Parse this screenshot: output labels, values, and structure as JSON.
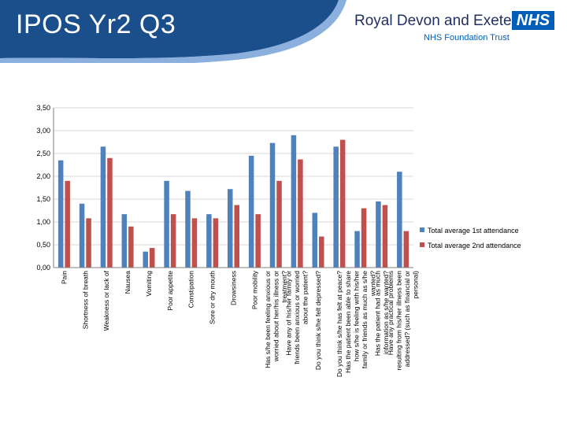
{
  "header": {
    "title": "IPOS Yr2 Q3",
    "org_name": "Royal Devon and Exeter",
    "nhs_badge": "NHS",
    "trust_name": "NHS Foundation Trust"
  },
  "colors": {
    "series1": "#4f81bd",
    "series2": "#c0504d",
    "header_dark": "#1b4f8c",
    "header_light": "#5a8fd0"
  },
  "chart_data": {
    "type": "bar",
    "title": "",
    "xlabel": "",
    "ylabel": "",
    "ylim": [
      0,
      3.5
    ],
    "yticks": [
      "0,00",
      "0,50",
      "1,00",
      "1,50",
      "2,00",
      "2,50",
      "3,00",
      "3,50"
    ],
    "legend_position": "right",
    "categories": [
      "Pain",
      "Shortness of breath",
      "Weakness or lack of",
      "Nausea",
      "Vomiting",
      "Poor appetite",
      "Constipation",
      "Sore or dry mouth",
      "Drowsiness",
      "Poor mobility",
      "Has s/he been feeling anxious or worried about her/his illness or treatment?",
      "Have any of his/her family or friends been anxious or worried about the patient?",
      "Do you think s/he felt depressed?",
      "Do you think s/he has felt at peace?",
      "Has the patient been able to share how s/he is feeling with his/her family or friends as much as s/he wanted?",
      "Has the patient had as much information as s/he wanted?",
      "Have any practical problems resulting from his/her illness been addressed? (such as financial or personal)"
    ],
    "series": [
      {
        "name": "Total average 1st attendance",
        "values": [
          2.35,
          1.4,
          2.65,
          1.17,
          0.35,
          1.9,
          1.68,
          1.17,
          1.72,
          2.45,
          2.73,
          2.9,
          1.2,
          2.65,
          0.8,
          1.45,
          2.1
        ]
      },
      {
        "name": "Total average 2nd attendance",
        "values": [
          1.9,
          1.08,
          2.4,
          0.9,
          0.43,
          1.17,
          1.08,
          1.08,
          1.37,
          1.17,
          1.9,
          2.37,
          0.68,
          2.8,
          1.3,
          1.37,
          0.8
        ]
      }
    ]
  }
}
